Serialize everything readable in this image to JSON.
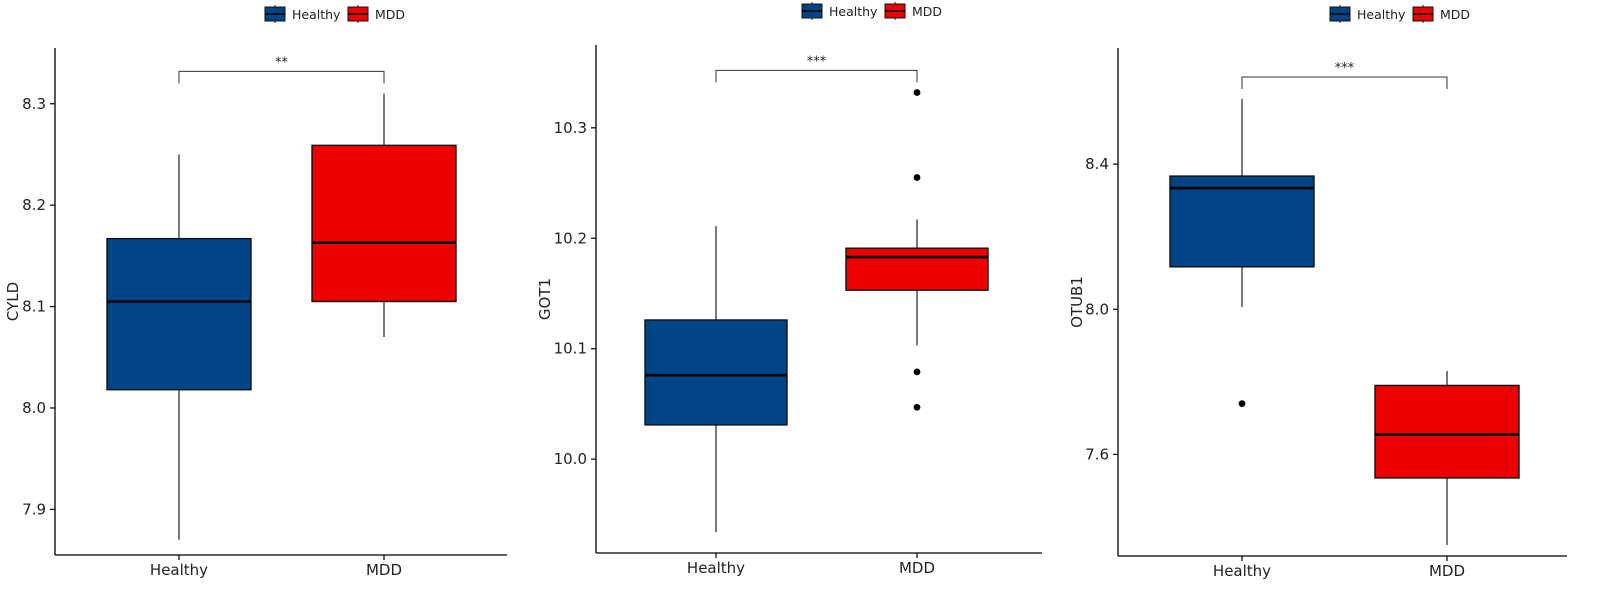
{
  "colors": {
    "Healthy": "#004488",
    "MDD": "#EE0000",
    "axis": "#000000"
  },
  "legend": {
    "items": [
      "Healthy",
      "MDD"
    ]
  },
  "chart_data": [
    {
      "type": "boxplot",
      "title": "",
      "xlabel": "",
      "ylabel": "CYLD",
      "categories": [
        "Healthy",
        "MDD"
      ],
      "ylim": [
        7.855,
        8.355
      ],
      "yticks": [
        7.9,
        8.0,
        8.1,
        8.2,
        8.3
      ],
      "ytick_labels": [
        "7.9",
        "8.0",
        "8.1",
        "8.2",
        "8.3"
      ],
      "boxes": [
        {
          "group": "Healthy",
          "whisker_low": 7.87,
          "q1": 8.018,
          "median": 8.105,
          "q3": 8.167,
          "whisker_high": 8.25,
          "outliers": []
        },
        {
          "group": "MDD",
          "whisker_low": 8.07,
          "q1": 8.105,
          "median": 8.163,
          "q3": 8.259,
          "whisker_high": 8.31,
          "outliers": []
        }
      ],
      "significance": {
        "label": "**",
        "y": 8.332
      },
      "legend_position": "top"
    },
    {
      "type": "boxplot",
      "title": "",
      "xlabel": "",
      "ylabel": "GOT1",
      "categories": [
        "Healthy",
        "MDD"
      ],
      "ylim": [
        9.915,
        10.375
      ],
      "yticks": [
        10.0,
        10.1,
        10.2,
        10.3
      ],
      "ytick_labels": [
        "10.0",
        "10.1",
        "10.2",
        "10.3"
      ],
      "boxes": [
        {
          "group": "Healthy",
          "whisker_low": 9.934,
          "q1": 10.031,
          "median": 10.076,
          "q3": 10.126,
          "whisker_high": 10.211,
          "outliers": []
        },
        {
          "group": "MDD",
          "whisker_low": 10.103,
          "q1": 10.153,
          "median": 10.183,
          "q3": 10.191,
          "whisker_high": 10.217,
          "outliers": [
            10.332,
            10.255,
            10.079,
            10.047
          ]
        }
      ],
      "significance": {
        "label": "***",
        "y": 10.352
      },
      "legend_position": "top"
    },
    {
      "type": "boxplot",
      "title": "",
      "xlabel": "",
      "ylabel": "OTUB1",
      "categories": [
        "Healthy",
        "MDD"
      ],
      "ylim": [
        7.32,
        8.72
      ],
      "yticks": [
        7.6,
        8.0,
        8.4
      ],
      "ytick_labels": [
        "7.6",
        "8.0",
        "8.4"
      ],
      "boxes": [
        {
          "group": "Healthy",
          "whisker_low": 8.006,
          "q1": 8.117,
          "median": 8.334,
          "q3": 8.367,
          "whisker_high": 8.58,
          "outliers": [
            7.74
          ]
        },
        {
          "group": "MDD",
          "whisker_low": 7.35,
          "q1": 7.535,
          "median": 7.655,
          "q3": 7.79,
          "whisker_high": 7.83,
          "outliers": []
        }
      ],
      "significance": {
        "label": "***",
        "y": 8.64
      },
      "legend_position": "top"
    }
  ]
}
